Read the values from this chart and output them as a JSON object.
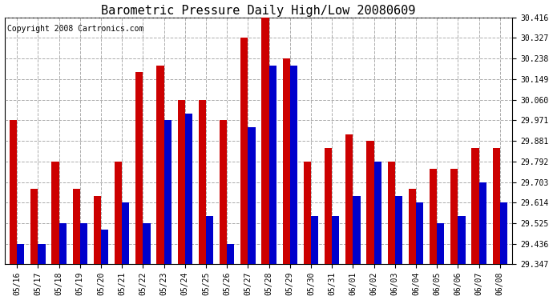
{
  "title": "Barometric Pressure Daily High/Low 20080609",
  "copyright": "Copyright 2008 Cartronics.com",
  "dates": [
    "05/16",
    "05/17",
    "05/18",
    "05/19",
    "05/20",
    "05/21",
    "05/22",
    "05/23",
    "05/24",
    "05/25",
    "05/26",
    "05/27",
    "05/28",
    "05/29",
    "05/30",
    "05/31",
    "06/01",
    "06/02",
    "06/03",
    "06/04",
    "06/05",
    "06/06",
    "06/07",
    "06/08"
  ],
  "highs": [
    29.971,
    29.673,
    29.792,
    29.673,
    29.644,
    29.792,
    30.179,
    30.208,
    30.06,
    30.06,
    29.971,
    30.327,
    30.416,
    30.238,
    29.792,
    29.851,
    29.911,
    29.881,
    29.792,
    29.673,
    29.762,
    29.762,
    29.851,
    29.851
  ],
  "lows": [
    29.436,
    29.436,
    29.525,
    29.525,
    29.496,
    29.614,
    29.525,
    29.971,
    30.0,
    29.555,
    29.436,
    29.941,
    30.208,
    30.208,
    29.555,
    29.555,
    29.644,
    29.792,
    29.644,
    29.614,
    29.525,
    29.555,
    29.703,
    29.614
  ],
  "ymin": 29.347,
  "ymax": 30.416,
  "yticks": [
    29.347,
    29.436,
    29.525,
    29.614,
    29.703,
    29.792,
    29.881,
    29.971,
    30.06,
    30.149,
    30.238,
    30.327,
    30.416
  ],
  "high_color": "#cc0000",
  "low_color": "#0000cc",
  "bg_color": "#ffffff",
  "grid_color": "#888888",
  "title_fontsize": 11,
  "copyright_fontsize": 7,
  "tick_fontsize": 7,
  "bar_width": 0.35
}
